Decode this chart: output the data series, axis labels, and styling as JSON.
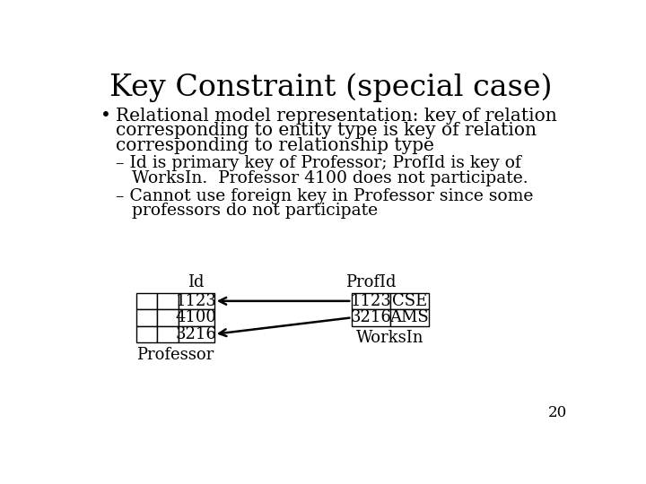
{
  "title": "Key Constraint (special case)",
  "bullet_line1": "Relational model representation: key of relation",
  "bullet_line2": "corresponding to entity type is key of relation",
  "bullet_line3": "corresponding to relationship type",
  "sub1_line1": "– Id is primary key of Professor; ProfId is key of",
  "sub1_line2": "   WorksIn.  Professor 4100 does not participate.",
  "sub2_line1": "– Cannot use foreign key in Professor since some",
  "sub2_line2": "   professors do not participate",
  "prof_label": "Id",
  "prof_rows": [
    [
      "",
      "",
      "1123"
    ],
    [
      "",
      "",
      "4100"
    ],
    [
      "",
      "",
      "3216"
    ]
  ],
  "prof_table_label": "Professor",
  "works_label": "ProfId",
  "works_rows": [
    [
      "1123",
      "CSE"
    ],
    [
      "3216",
      "AMS"
    ]
  ],
  "works_table_label": "WorksIn",
  "page_number": "20",
  "title_fontsize": 24,
  "body_fontsize": 14.5,
  "sub_fontsize": 13.5,
  "table_fontsize": 13
}
